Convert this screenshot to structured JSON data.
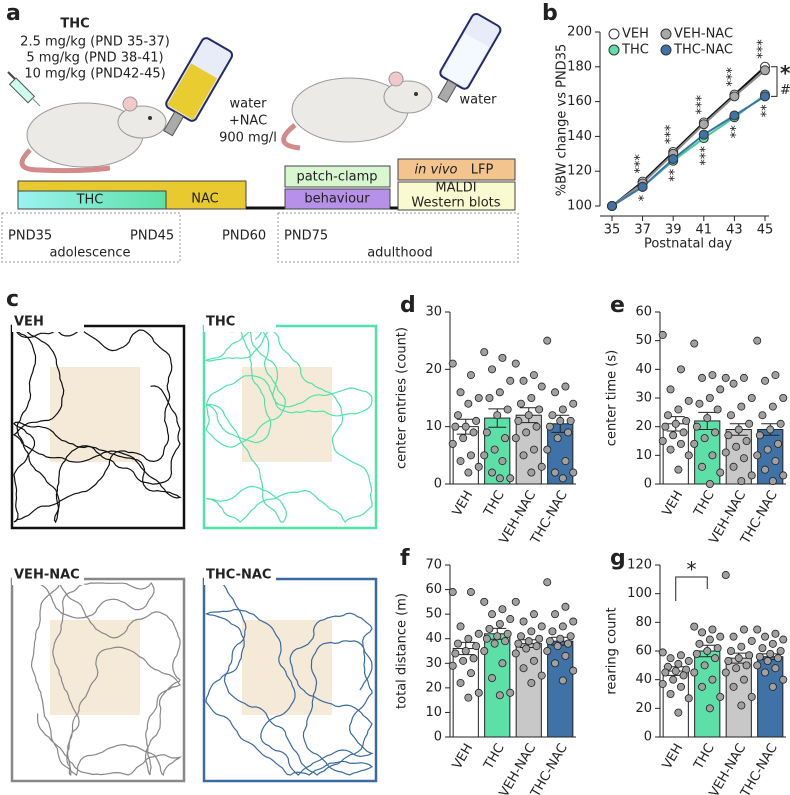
{
  "panels": {
    "a": {
      "letter": "a",
      "drug": "THC",
      "doses": [
        "2.5 mg/kg (PND 35-37)",
        "5 mg/kg (PND 38-41)",
        "10 mg/kg (PND42-45)"
      ],
      "bottle1": [
        "water",
        "+NAC",
        "900 mg/l"
      ],
      "bottle2": "water",
      "bars": {
        "thc": "THC",
        "nac": "NAC",
        "patch": "patch-clamp",
        "behaviour": "behaviour",
        "lfp_italic": "in vivo",
        "lfp": "LFP",
        "maldi": "MALDI",
        "western": "Western blots"
      },
      "timeline": {
        "pnd35": "PND35",
        "pnd45": "PND45",
        "pnd60": "PND60",
        "pnd75": "PND75",
        "adolescence": "adolescence",
        "adulthood": "adulthood"
      }
    },
    "c": {
      "letter": "c",
      "groups": [
        "VEH",
        "THC",
        "VEH-NAC",
        "THC-NAC"
      ]
    }
  },
  "chart_data": [
    {
      "type": "line",
      "panel": "b",
      "xlabel": "Postnatal day",
      "ylabel": "%BW change vs PND35",
      "x": [
        35,
        37,
        39,
        41,
        43,
        45
      ],
      "xlim": [
        35,
        45
      ],
      "xticks": [
        35,
        37,
        39,
        41,
        43,
        45
      ],
      "ylim": [
        100,
        200
      ],
      "yticks": [
        100,
        120,
        140,
        160,
        180,
        200
      ],
      "series": [
        {
          "name": "VEH",
          "color": "#ffffff",
          "line_color": "#111111",
          "values": [
            100,
            114,
            131,
            148,
            164,
            180
          ]
        },
        {
          "name": "VEH-NAC",
          "color": "#a8a8a8",
          "line_color": "#8a8a8a",
          "values": [
            100,
            113,
            130,
            147,
            163,
            178
          ]
        },
        {
          "name": "THC",
          "color": "#5de0a8",
          "line_color": "#3fcf90",
          "values": [
            100,
            111,
            126,
            139,
            151,
            164
          ]
        },
        {
          "name": "THC-NAC",
          "color": "#3f72a6",
          "line_color": "#3f72a6",
          "values": [
            100,
            111,
            127,
            141,
            152,
            163
          ]
        }
      ],
      "annotations": [
        {
          "x": 37,
          "above": "***",
          "below": "*"
        },
        {
          "x": 39,
          "above": "***",
          "below": "**"
        },
        {
          "x": 41,
          "above": "***",
          "below": "***"
        },
        {
          "x": 43,
          "above": "***",
          "below": "**"
        },
        {
          "x": 45,
          "above": "***",
          "below": "**"
        }
      ],
      "comparison_marks": [
        "*",
        "#"
      ]
    },
    {
      "type": "bar",
      "panel": "d",
      "ylabel": "center entries (count)",
      "categories": [
        "VEH",
        "THC",
        "VEH-NAC",
        "THC-NAC"
      ],
      "colors": [
        "#ffffff",
        "#5de0a8",
        "#c8c8c8",
        "#3f72a6"
      ],
      "ylim": [
        0,
        30
      ],
      "yticks": [
        0,
        10,
        20,
        30
      ],
      "values": [
        10,
        11.5,
        12,
        10.5
      ],
      "errors": [
        1.3,
        1.6,
        1.3,
        1.5
      ],
      "points": [
        [
          21,
          19,
          16,
          15,
          14,
          12,
          11,
          10,
          10,
          9,
          8,
          7,
          5,
          4,
          3,
          2
        ],
        [
          23,
          22,
          20,
          18,
          16,
          15,
          13,
          12,
          9,
          8,
          6,
          5,
          4,
          2,
          1,
          1
        ],
        [
          21,
          19,
          18,
          17,
          15,
          14,
          13,
          12,
          11,
          10,
          9,
          8,
          6,
          5,
          3,
          2
        ],
        [
          25,
          17,
          16,
          14,
          13,
          12,
          11,
          11,
          10,
          9,
          8,
          6,
          4,
          2,
          2,
          1
        ]
      ]
    },
    {
      "type": "bar",
      "panel": "e",
      "ylabel": "center time (s)",
      "categories": [
        "VEH",
        "THC",
        "VEH-NAC",
        "THC-NAC"
      ],
      "colors": [
        "#ffffff",
        "#5de0a8",
        "#c8c8c8",
        "#3f72a6"
      ],
      "ylim": [
        0,
        60
      ],
      "yticks": [
        0,
        10,
        20,
        30,
        40,
        50,
        60
      ],
      "values": [
        21,
        22,
        19,
        19
      ],
      "errors": [
        2.5,
        3,
        2,
        2
      ],
      "points": [
        [
          52,
          40,
          33,
          29,
          26,
          24,
          22,
          21,
          20,
          18,
          17,
          15,
          14,
          12,
          10,
          5
        ],
        [
          49,
          38,
          37,
          33,
          30,
          28,
          26,
          23,
          20,
          18,
          16,
          14,
          10,
          6,
          4,
          0
        ],
        [
          37,
          37,
          35,
          30,
          27,
          24,
          21,
          19,
          17,
          15,
          13,
          11,
          9,
          6,
          3,
          1
        ],
        [
          50,
          38,
          36,
          30,
          27,
          24,
          21,
          19,
          17,
          14,
          12,
          10,
          8,
          5,
          3,
          1
        ]
      ]
    },
    {
      "type": "bar",
      "panel": "f",
      "ylabel": "total distance (m)",
      "categories": [
        "VEH",
        "THC",
        "VEH-NAC",
        "THC-NAC"
      ],
      "colors": [
        "#ffffff",
        "#5de0a8",
        "#c8c8c8",
        "#3f72a6"
      ],
      "ylim": [
        0,
        70
      ],
      "yticks": [
        0,
        10,
        20,
        30,
        40,
        50,
        60,
        70
      ],
      "values": [
        36,
        42,
        38,
        39
      ],
      "errors": [
        2.5,
        2.2,
        1.6,
        1.6
      ],
      "points": [
        [
          59,
          59,
          45,
          42,
          40,
          38,
          37,
          35,
          34,
          32,
          31,
          29,
          26,
          22,
          18,
          16
        ],
        [
          55,
          52,
          50,
          48,
          46,
          44,
          42,
          41,
          40,
          39,
          38,
          35,
          30,
          24,
          18,
          17
        ],
        [
          55,
          50,
          47,
          45,
          43,
          41,
          40,
          39,
          38,
          37,
          36,
          34,
          31,
          28,
          25,
          22
        ],
        [
          63,
          53,
          50,
          47,
          45,
          43,
          41,
          40,
          39,
          38,
          37,
          35,
          33,
          30,
          27,
          23
        ]
      ]
    },
    {
      "type": "bar",
      "panel": "g",
      "ylabel": "rearing count",
      "categories": [
        "VEH",
        "THC",
        "VEH-NAC",
        "THC-NAC"
      ],
      "colors": [
        "#ffffff",
        "#5de0a8",
        "#c8c8c8",
        "#3f72a6"
      ],
      "ylim": [
        0,
        120
      ],
      "yticks": [
        0,
        20,
        40,
        60,
        80,
        100,
        120
      ],
      "values": [
        46,
        60,
        55,
        56
      ],
      "errors": [
        3,
        4,
        3.5,
        2
      ],
      "points": [
        [
          59,
          57,
          55,
          53,
          51,
          49,
          47,
          46,
          45,
          43,
          40,
          37,
          35,
          30,
          27,
          17
        ],
        [
          77,
          75,
          73,
          70,
          68,
          65,
          62,
          60,
          58,
          55,
          50,
          45,
          40,
          35,
          28,
          20
        ],
        [
          113,
          75,
          70,
          67,
          63,
          60,
          57,
          55,
          53,
          50,
          48,
          45,
          40,
          35,
          28,
          22
        ],
        [
          75,
          72,
          70,
          68,
          65,
          62,
          60,
          58,
          56,
          55,
          53,
          50,
          48,
          45,
          40,
          35
        ]
      ],
      "significance": {
        "text": "*",
        "between": [
          "VEH",
          "THC"
        ]
      }
    }
  ]
}
